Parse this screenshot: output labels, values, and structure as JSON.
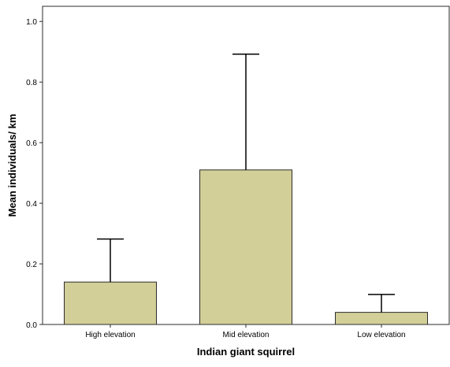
{
  "chart_data": {
    "type": "bar",
    "categories": [
      "High elevation",
      "Mid elevation",
      "Low elevation"
    ],
    "values": [
      0.14,
      0.51,
      0.04
    ],
    "error_bars_upper": [
      0.282,
      0.892,
      0.099
    ],
    "xlabel": "Indian giant squirrel",
    "ylabel": "Mean individuals/ km",
    "ylim": [
      0,
      1.05
    ],
    "yticks": [
      "0.0",
      "0.2",
      "0.4",
      "0.6",
      "0.8",
      "1.0"
    ],
    "grid": false,
    "bar_color": "#d3cf98",
    "outline_color": "#2b2b2b"
  }
}
